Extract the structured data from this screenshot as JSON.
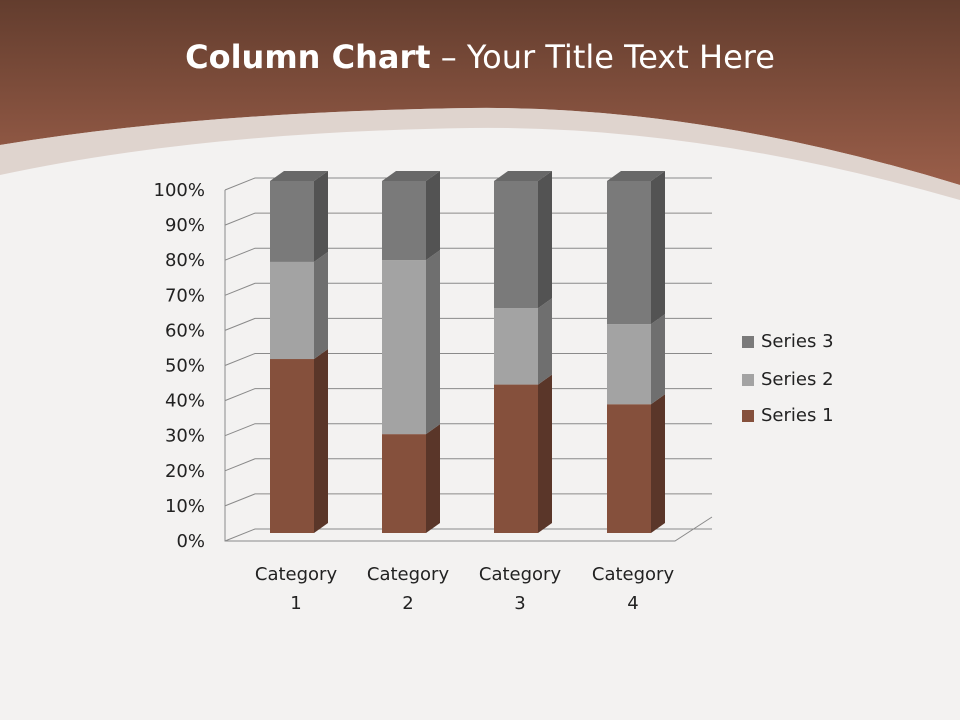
{
  "slide": {
    "title_bold": "Column Chart",
    "title_rest": " – Your Title Text Here"
  },
  "colors": {
    "header_dark": "#633d2e",
    "header_light": "#9a5e49"
  },
  "chart_data": {
    "type": "bar",
    "subtype": "3d-stacked-100-percent",
    "categories": [
      "Category 1",
      "Category 2",
      "Category 3",
      "Category 4"
    ],
    "category_lines": [
      [
        "Category",
        "1"
      ],
      [
        "Category",
        "2"
      ],
      [
        "Category",
        "3"
      ],
      [
        "Category",
        "4"
      ]
    ],
    "series": [
      {
        "name": "Series 1",
        "values": [
          4.3,
          2.5,
          3.5,
          4.5
        ],
        "color": "#85503c"
      },
      {
        "name": "Series 2",
        "values": [
          2.4,
          4.4,
          1.8,
          2.8
        ],
        "color": "#a3a3a3"
      },
      {
        "name": "Series 3",
        "values": [
          2,
          2,
          3,
          5
        ],
        "color": "#7a7a7a"
      }
    ],
    "yticks": [
      "0%",
      "10%",
      "20%",
      "30%",
      "40%",
      "50%",
      "60%",
      "70%",
      "80%",
      "90%",
      "100%"
    ],
    "ylim": [
      0,
      100
    ],
    "grid": true,
    "legend": "right"
  }
}
